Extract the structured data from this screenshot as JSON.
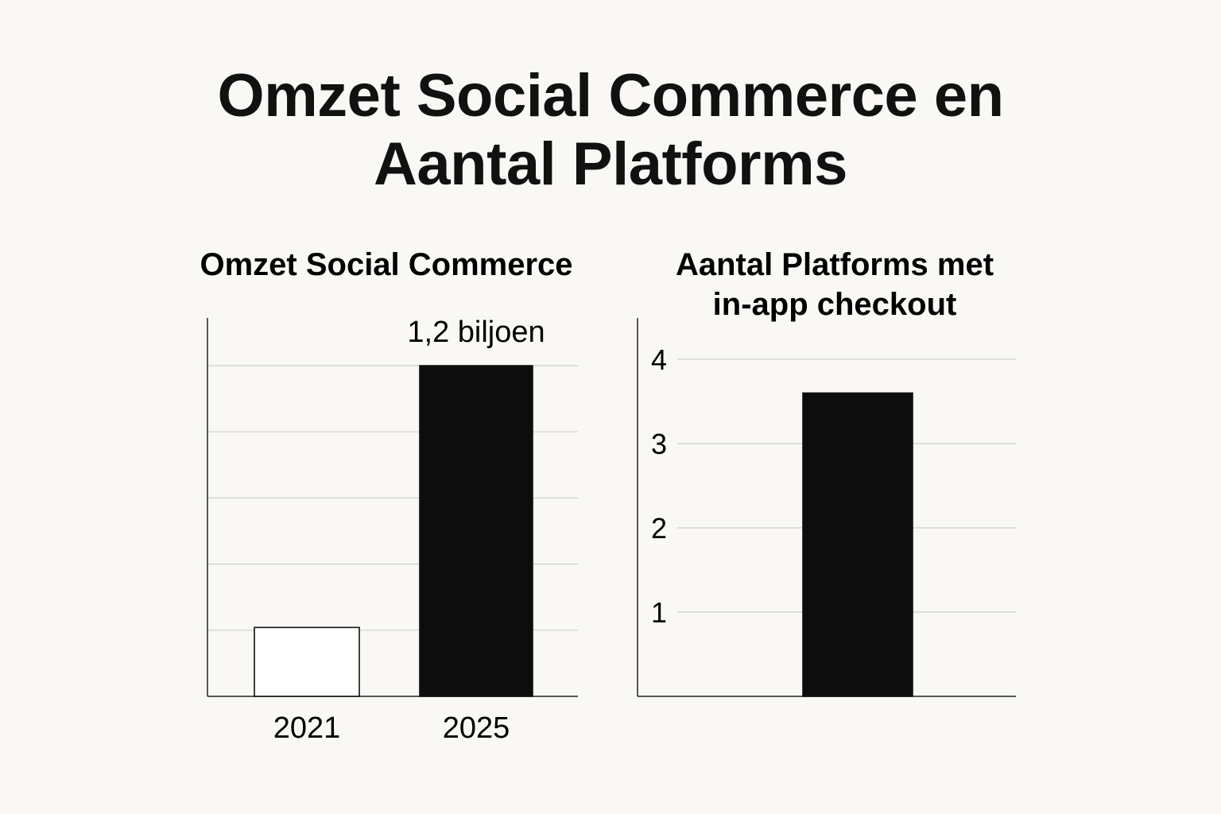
{
  "title_lines": [
    "Omzet Social Commerce en",
    "Aantal Platforms"
  ],
  "chart_data": [
    {
      "type": "bar",
      "title": "Omzet Social Commerce",
      "categories": [
        "2021",
        "2025"
      ],
      "values": [
        0.25,
        1.2
      ],
      "data_labels": [
        "",
        "1,2 biljoen"
      ],
      "ylim": [
        0,
        1.2
      ],
      "grid": true,
      "bar_colors": [
        "#ffffff",
        "#0d0d0d"
      ]
    },
    {
      "type": "bar",
      "title_lines": [
        "Aantal Platforms met",
        "in-app checkout"
      ],
      "categories": [
        ""
      ],
      "values": [
        3.6
      ],
      "yticks": [
        1,
        2,
        3,
        4
      ],
      "ylim": [
        0,
        4
      ],
      "grid": true,
      "bar_colors": [
        "#0d0d0d"
      ]
    }
  ]
}
